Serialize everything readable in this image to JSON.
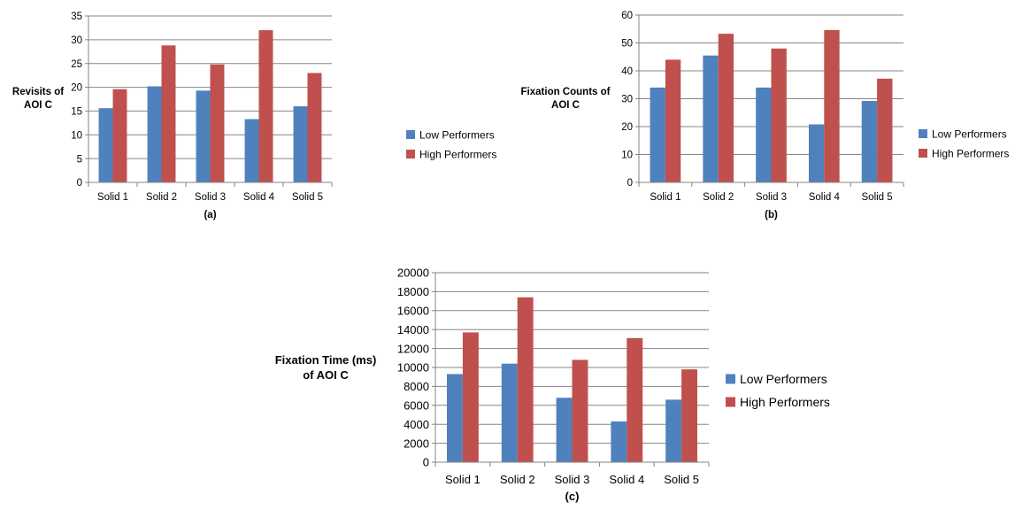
{
  "colors": {
    "low": "#4f81bd",
    "high": "#c0504d",
    "grid": "#868686",
    "text": "#000000"
  },
  "chart_data": [
    {
      "type": "bar",
      "panel": "(a)",
      "ylabel": "Revisits of AOI C",
      "ylabel_lines": [
        "Revisits of",
        "AOI C"
      ],
      "categories": [
        "Solid 1",
        "Solid 2",
        "Solid 3",
        "Solid 4",
        "Solid 5"
      ],
      "ylim": [
        0,
        35
      ],
      "yticks": [
        0,
        5,
        10,
        15,
        20,
        25,
        30,
        35
      ],
      "grid": true,
      "legend_position": "right",
      "series": [
        {
          "name": "Low Performers",
          "values": [
            15.6,
            20.2,
            19.3,
            13.3,
            16.0
          ]
        },
        {
          "name": "High Performers",
          "values": [
            19.6,
            28.8,
            24.8,
            32.0,
            23.0
          ]
        }
      ]
    },
    {
      "type": "bar",
      "panel": "(b)",
      "ylabel": "Fixation Counts of AOI C",
      "ylabel_lines": [
        "Fixation Counts of",
        "AOI C"
      ],
      "categories": [
        "Solid 1",
        "Solid 2",
        "Solid 3",
        "Solid 4",
        "Solid 5"
      ],
      "ylim": [
        0,
        60
      ],
      "yticks": [
        0,
        10,
        20,
        30,
        40,
        50,
        60
      ],
      "grid": true,
      "legend_position": "right",
      "series": [
        {
          "name": "Low Performers",
          "values": [
            34,
            45.5,
            34,
            20.8,
            29.2
          ]
        },
        {
          "name": "High Performers",
          "values": [
            44,
            53.3,
            48,
            54.6,
            37.2
          ]
        }
      ]
    },
    {
      "type": "bar",
      "panel": "(c)",
      "ylabel": "Fixation Time (ms) of AOI C",
      "ylabel_lines": [
        "Fixation Time (ms)",
        "of AOI C"
      ],
      "categories": [
        "Solid 1",
        "Solid 2",
        "Solid 3",
        "Solid 4",
        "Solid 5"
      ],
      "ylim": [
        0,
        20000
      ],
      "yticks": [
        0,
        2000,
        4000,
        6000,
        8000,
        10000,
        12000,
        14000,
        16000,
        18000,
        20000
      ],
      "grid": true,
      "legend_position": "right",
      "series": [
        {
          "name": "Low Performers",
          "values": [
            9300,
            10400,
            6800,
            4300,
            6600
          ]
        },
        {
          "name": "High Performers",
          "values": [
            13700,
            17400,
            10800,
            13100,
            9800
          ]
        }
      ]
    }
  ]
}
